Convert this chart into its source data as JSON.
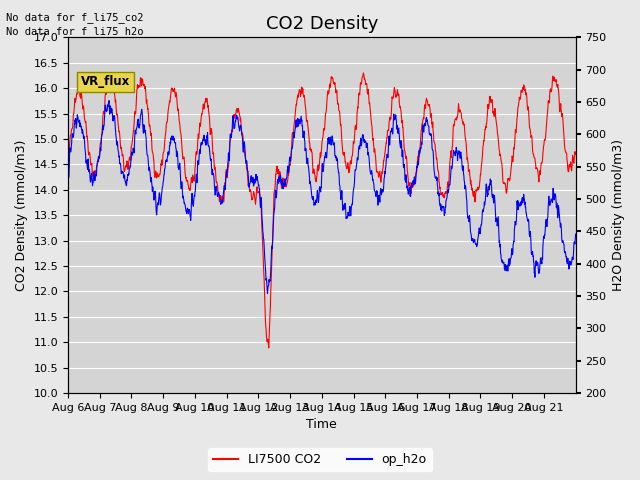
{
  "title": "CO2 Density",
  "xlabel": "Time",
  "ylabel_left": "CO2 Density (mmol/m3)",
  "ylabel_right": "H2O Density (mmol/m3)",
  "ylim_left": [
    10.0,
    17.0
  ],
  "ylim_right": [
    200,
    750
  ],
  "yticks_left": [
    10.0,
    10.5,
    11.0,
    11.5,
    12.0,
    12.5,
    13.0,
    13.5,
    14.0,
    14.5,
    15.0,
    15.5,
    16.0,
    16.5,
    17.0
  ],
  "yticks_right": [
    200,
    250,
    300,
    350,
    400,
    450,
    500,
    550,
    600,
    650,
    700,
    750
  ],
  "xtick_labels": [
    "Aug 6",
    "Aug 7",
    "Aug 8",
    "Aug 9",
    "Aug 10",
    "Aug 11",
    "Aug 12",
    "Aug 13",
    "Aug 14",
    "Aug 15",
    "Aug 16",
    "Aug 17",
    "Aug 18",
    "Aug 19",
    "Aug 20",
    "Aug 21"
  ],
  "legend_labels": [
    "LI7500 CO2",
    "op_h2o"
  ],
  "line_color_co2": "red",
  "line_color_h2o": "blue",
  "annotation1": "No data for f_li75_co2",
  "annotation2": "No data for f_li75_h2o",
  "vr_flux_label": "VR_flux",
  "background_color": "#e8e8e8",
  "plot_bg_color": "#d4d4d4",
  "title_fontsize": 13,
  "axis_label_fontsize": 9,
  "tick_fontsize": 8,
  "n_days": 16
}
